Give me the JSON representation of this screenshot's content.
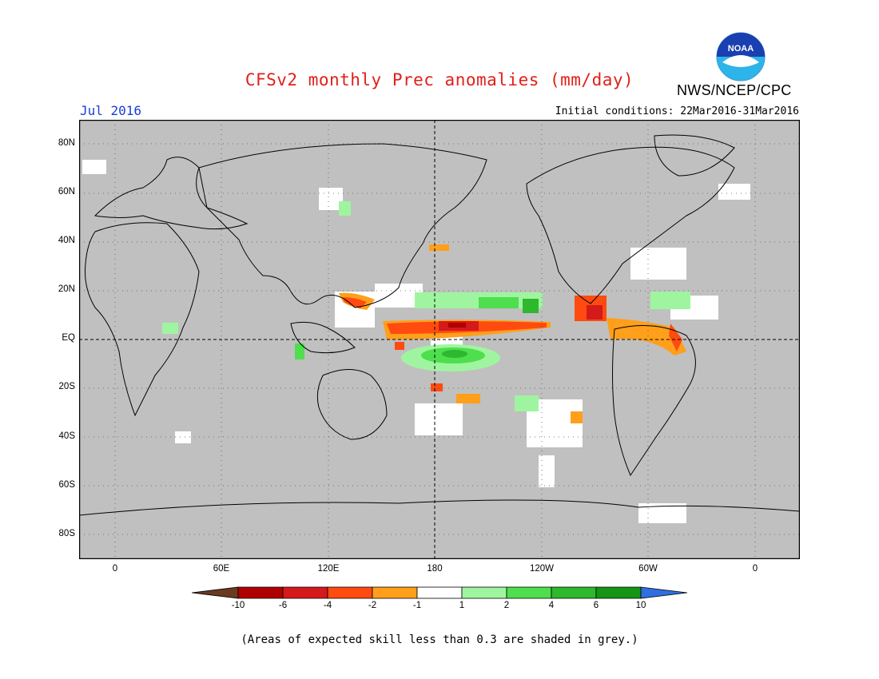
{
  "header": {
    "title": "CFSv2 monthly Prec anomalies (mm/day)",
    "agency": "NWS/NCEP/CPC",
    "logo_text": "NOAA",
    "month": "Jul 2016",
    "initial_conditions": "Initial conditions: 22Mar2016-31Mar2016"
  },
  "axes": {
    "lat_labels": [
      "80N",
      "60N",
      "40N",
      "20N",
      "EQ",
      "20S",
      "40S",
      "60S",
      "80S"
    ],
    "lon_labels": [
      "0",
      "60E",
      "120E",
      "180",
      "120W",
      "60W",
      "0"
    ]
  },
  "colorbar": {
    "labels": [
      "-10",
      "-6",
      "-4",
      "-2",
      "-1",
      "1",
      "2",
      "4",
      "6",
      "10"
    ],
    "colors": [
      "#6b3a1f",
      "#b00000",
      "#d41a1a",
      "#ff4b10",
      "#ff9f1a",
      "#ffffff",
      "#9ff59f",
      "#4ede4e",
      "#2db82d",
      "#149614",
      "#2f6fe0"
    ]
  },
  "footnote": "(Areas of expected skill less than 0.3 are shaded in grey.)",
  "colors": {
    "grey_mask": "#c0c0c0",
    "coast": "#000000",
    "title": "#e0201a",
    "month": "#1a3fd6"
  }
}
